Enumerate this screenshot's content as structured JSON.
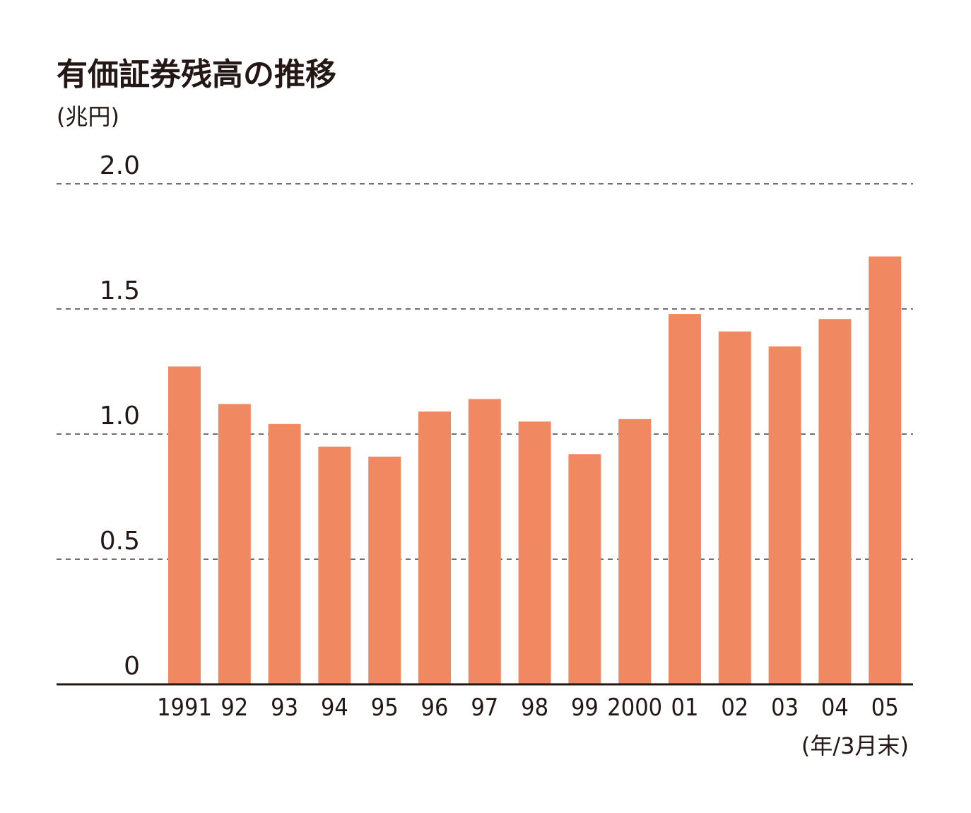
{
  "chart_data": {
    "type": "bar",
    "title": "有価証券残高の推移",
    "unit": "(兆円)",
    "xlabel": "(年/3月末)",
    "categories": [
      "1991",
      "92",
      "93",
      "94",
      "95",
      "96",
      "97",
      "98",
      "99",
      "2000",
      "01",
      "02",
      "03",
      "04",
      "05"
    ],
    "values": [
      1.27,
      1.12,
      1.04,
      0.95,
      0.91,
      1.09,
      1.14,
      1.05,
      0.92,
      1.06,
      1.48,
      1.41,
      1.35,
      1.46,
      1.71
    ],
    "yticks": [
      "0",
      "0.5",
      "1.0",
      "1.5",
      "2.0"
    ],
    "ylim": [
      0,
      2.0
    ],
    "grid": true,
    "legend": "none",
    "bar_color": "#f08861",
    "text_color": "#231815"
  }
}
